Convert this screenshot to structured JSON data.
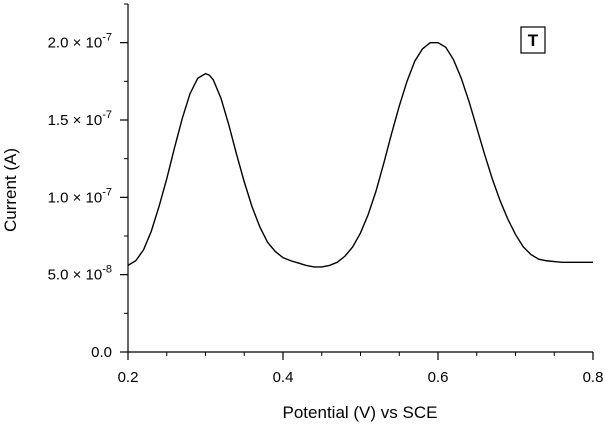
{
  "chart_data": {
    "type": "line",
    "title": "",
    "panel_label": "T",
    "xlabel": "Potential (V) vs SCE",
    "ylabel": "Current (A)",
    "xlim": [
      0.2,
      0.8
    ],
    "ylim": [
      0,
      2.25e-07
    ],
    "grid": false,
    "legend": "none",
    "line_color": "#000000",
    "x_ticks": [
      {
        "value": 0.2,
        "label": "0.2"
      },
      {
        "value": 0.4,
        "label": "0.4"
      },
      {
        "value": 0.6,
        "label": "0.6"
      },
      {
        "value": 0.8,
        "label": "0.8"
      }
    ],
    "y_ticks": [
      {
        "value": 0,
        "mantissa": "0.0",
        "exponent": ""
      },
      {
        "value": 5e-08,
        "mantissa": "5.0 × 10",
        "exponent": "-8"
      },
      {
        "value": 1e-07,
        "mantissa": "1.0 × 10",
        "exponent": "-7"
      },
      {
        "value": 1.5e-07,
        "mantissa": "1.5 × 10",
        "exponent": "-7"
      },
      {
        "value": 2e-07,
        "mantissa": "2.0 × 10",
        "exponent": "-7"
      }
    ],
    "y_minor_ticks": [
      2.5e-08,
      7.5e-08,
      1.25e-07,
      1.75e-07,
      2.25e-07
    ],
    "x_minor_ticks": [
      0.25,
      0.3,
      0.35,
      0.45,
      0.5,
      0.55,
      0.65,
      0.7,
      0.75
    ],
    "series": [
      {
        "x": [
          0.2,
          0.21,
          0.22,
          0.23,
          0.24,
          0.25,
          0.26,
          0.27,
          0.28,
          0.29,
          0.3,
          0.305,
          0.31,
          0.32,
          0.33,
          0.34,
          0.35,
          0.36,
          0.37,
          0.38,
          0.39,
          0.4,
          0.41,
          0.42,
          0.43,
          0.44,
          0.45,
          0.46,
          0.47,
          0.48,
          0.49,
          0.5,
          0.51,
          0.52,
          0.53,
          0.54,
          0.55,
          0.56,
          0.57,
          0.58,
          0.59,
          0.6,
          0.61,
          0.62,
          0.63,
          0.64,
          0.65,
          0.66,
          0.67,
          0.68,
          0.69,
          0.7,
          0.71,
          0.72,
          0.73,
          0.74,
          0.75,
          0.76,
          0.77,
          0.78,
          0.79,
          0.8
        ],
        "y": [
          5.6e-08,
          5.9e-08,
          6.6e-08,
          7.8e-08,
          9.4e-08,
          1.12e-07,
          1.32e-07,
          1.51e-07,
          1.67e-07,
          1.77e-07,
          1.8e-07,
          1.79e-07,
          1.76e-07,
          1.64e-07,
          1.47e-07,
          1.28e-07,
          1.1e-07,
          9.4e-08,
          8.1e-08,
          7.1e-08,
          6.5e-08,
          6.1e-08,
          5.9e-08,
          5.75e-08,
          5.6e-08,
          5.5e-08,
          5.5e-08,
          5.6e-08,
          5.8e-08,
          6.2e-08,
          6.8e-08,
          7.7e-08,
          8.9e-08,
          1.04e-07,
          1.22e-07,
          1.41e-07,
          1.59e-07,
          1.75e-07,
          1.88e-07,
          1.96e-07,
          2e-07,
          2e-07,
          1.97e-07,
          1.89e-07,
          1.77e-07,
          1.62e-07,
          1.45e-07,
          1.28e-07,
          1.12e-07,
          9.8e-08,
          8.6e-08,
          7.6e-08,
          6.8e-08,
          6.3e-08,
          6e-08,
          5.9e-08,
          5.85e-08,
          5.8e-08,
          5.8e-08,
          5.8e-08,
          5.8e-08,
          5.8e-08
        ]
      }
    ]
  }
}
